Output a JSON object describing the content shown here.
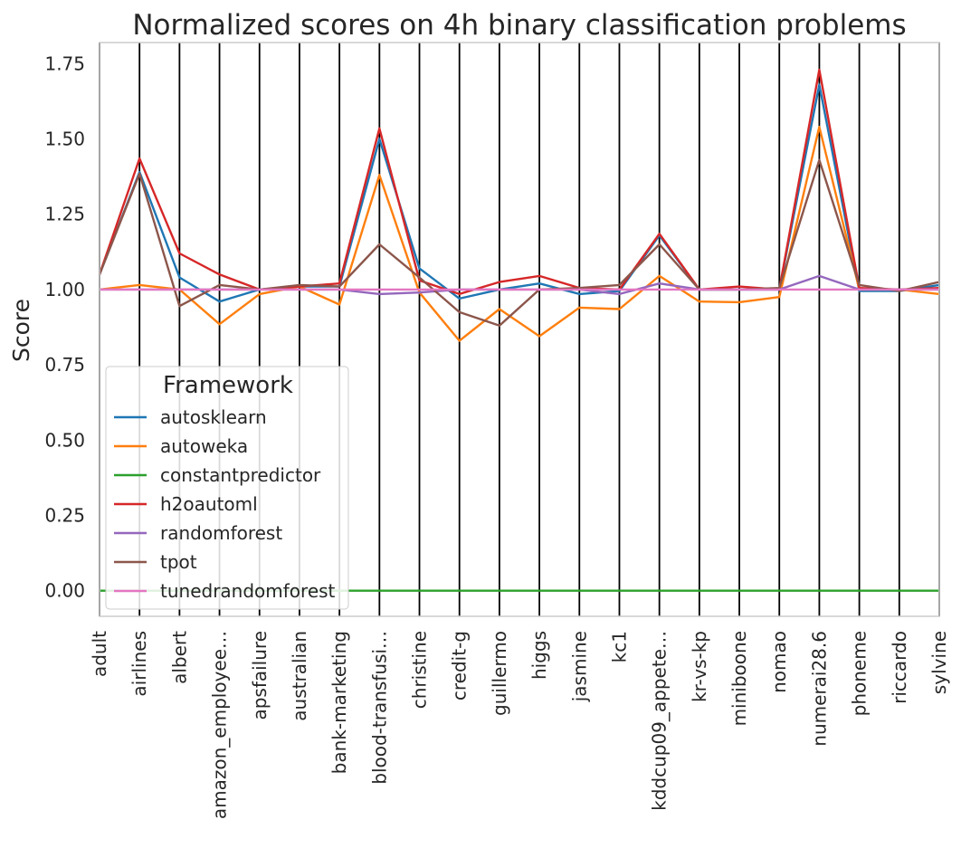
{
  "chart_data": {
    "type": "line",
    "title": "Normalized scores on 4h binary classification problems",
    "xlabel": "",
    "ylabel": "Score",
    "ylim": [
      -0.085,
      1.82
    ],
    "yticks": [
      "0.00",
      "0.25",
      "0.50",
      "0.75",
      "1.00",
      "1.25",
      "1.50",
      "1.75"
    ],
    "categories": [
      "adult",
      "airlines",
      "albert",
      "amazon_employee…",
      "apsfailure",
      "australian",
      "bank-marketing",
      "blood-transfusi…",
      "christine",
      "credit-g",
      "guillermo",
      "higgs",
      "jasmine",
      "kc1",
      "kddcup09_appete…",
      "kr-vs-kp",
      "miniboone",
      "nomao",
      "numerai28.6",
      "phoneme",
      "riccardo",
      "sylvine"
    ],
    "grid": "vertical-black",
    "legend": {
      "title": "Framework",
      "placement": "lower-left"
    },
    "series": [
      {
        "name": "autosklearn",
        "color": "#1f77b4",
        "values": [
          1.05,
          1.39,
          1.04,
          0.96,
          1.0,
          1.01,
          1.01,
          1.5,
          1.07,
          0.97,
          1.0,
          1.02,
          0.985,
          0.995,
          1.18,
          1.0,
          1.0,
          1.0,
          1.68,
          0.995,
          0.995,
          1.015
        ]
      },
      {
        "name": "autoweka",
        "color": "#ff7f0e",
        "values": [
          1.0,
          1.015,
          1.0,
          0.885,
          0.985,
          1.01,
          0.95,
          1.38,
          0.99,
          0.83,
          0.935,
          0.845,
          0.94,
          0.935,
          1.045,
          0.96,
          0.958,
          0.975,
          1.54,
          1.0,
          1.0,
          0.985
        ]
      },
      {
        "name": "constantpredictor",
        "color": "#2ca02c",
        "values": [
          0,
          0,
          0,
          0,
          0,
          0,
          0,
          0,
          0,
          0,
          0,
          0,
          0,
          0,
          0,
          0,
          0,
          0,
          0,
          0,
          0,
          0
        ]
      },
      {
        "name": "h2oautoml",
        "color": "#d62728",
        "values": [
          1.05,
          1.435,
          1.12,
          1.05,
          1.0,
          1.01,
          1.02,
          1.535,
          1.03,
          0.985,
          1.025,
          1.045,
          1.005,
          1.0,
          1.185,
          1.0,
          1.01,
          1.0,
          1.73,
          1.005,
          1.0,
          1.005
        ]
      },
      {
        "name": "randomforest",
        "color": "#9467bd",
        "values": [
          1.0,
          1.0,
          1.0,
          1.0,
          1.0,
          1.0,
          1.0,
          0.985,
          0.99,
          1.0,
          1.0,
          1.0,
          1.0,
          0.985,
          1.02,
          1.0,
          1.0,
          1.0,
          1.045,
          1.0,
          1.0,
          1.0
        ]
      },
      {
        "name": "tpot",
        "color": "#8c564b",
        "values": [
          1.05,
          1.385,
          0.945,
          1.015,
          1.0,
          1.015,
          1.01,
          1.15,
          1.04,
          0.925,
          0.88,
          1.0,
          1.005,
          1.015,
          1.15,
          1.0,
          1.0,
          1.005,
          1.43,
          1.015,
          0.995,
          1.025
        ]
      },
      {
        "name": "tunedrandomforest",
        "color": "#e377c2",
        "values": [
          1.0,
          1.0,
          1.0,
          1.0,
          1.0,
          1.0,
          1.0,
          1.0,
          1.0,
          1.0,
          1.0,
          1.0,
          1.0,
          1.0,
          1.0,
          1.0,
          1.0,
          1.0,
          1.0,
          1.0,
          1.0,
          1.0
        ]
      }
    ]
  }
}
